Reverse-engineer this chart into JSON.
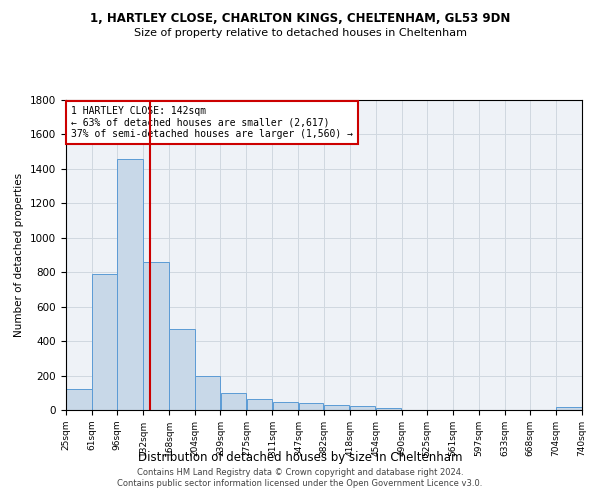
{
  "title_line1": "1, HARTLEY CLOSE, CHARLTON KINGS, CHELTENHAM, GL53 9DN",
  "title_line2": "Size of property relative to detached houses in Cheltenham",
  "xlabel": "Distribution of detached houses by size in Cheltenham",
  "ylabel": "Number of detached properties",
  "footer_line1": "Contains HM Land Registry data © Crown copyright and database right 2024.",
  "footer_line2": "Contains public sector information licensed under the Open Government Licence v3.0.",
  "annotation_line1": "1 HARTLEY CLOSE: 142sqm",
  "annotation_line2": "← 63% of detached houses are smaller (2,617)",
  "annotation_line3": "37% of semi-detached houses are larger (1,560) →",
  "property_size": 142,
  "bin_edges": [
    25,
    61,
    96,
    132,
    168,
    204,
    239,
    275,
    311,
    347,
    382,
    418,
    454,
    490,
    525,
    561,
    597,
    633,
    668,
    704,
    740
  ],
  "bar_heights": [
    120,
    790,
    1460,
    860,
    470,
    200,
    100,
    65,
    45,
    40,
    30,
    25,
    10,
    0,
    0,
    0,
    0,
    0,
    0,
    15
  ],
  "bar_color": "#c8d8e8",
  "bar_edgecolor": "#5b9bd5",
  "vline_color": "#cc0000",
  "annotation_box_edgecolor": "#cc0000",
  "annotation_box_facecolor": "#ffffff",
  "grid_color": "#d0d8e0",
  "background_color": "#eef2f7",
  "ylim": [
    0,
    1800
  ],
  "yticks": [
    0,
    200,
    400,
    600,
    800,
    1000,
    1200,
    1400,
    1600,
    1800
  ]
}
